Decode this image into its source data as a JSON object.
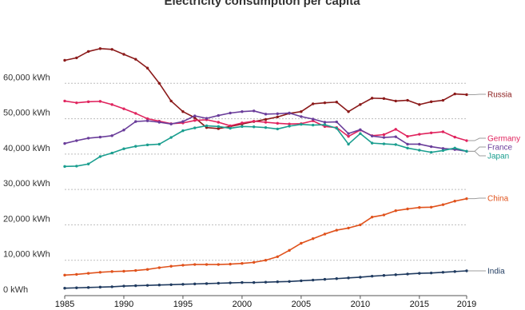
{
  "chart_data": {
    "type": "line",
    "title": "Electricity consumption per capita",
    "xlabel": "",
    "ylabel": "",
    "xlim": [
      1985,
      2019
    ],
    "ylim": [
      0,
      70000
    ],
    "x_ticks": [
      "1985",
      "1990",
      "1995",
      "2000",
      "2005",
      "2010",
      "2015",
      "2019"
    ],
    "y_ticks": [
      "0 kWh",
      "10,000 kWh",
      "20,000 kWh",
      "30,000 kWh",
      "40,000 kWh",
      "50,000 kWh",
      "60,000 kWh"
    ],
    "grid": true,
    "legend": "right-end labels",
    "x": [
      1985,
      1986,
      1987,
      1988,
      1989,
      1990,
      1991,
      1992,
      1993,
      1994,
      1995,
      1996,
      1997,
      1998,
      1999,
      2000,
      2001,
      2002,
      2003,
      2004,
      2005,
      2006,
      2007,
      2008,
      2009,
      2010,
      2011,
      2012,
      2013,
      2014,
      2015,
      2016,
      2017,
      2018,
      2019
    ],
    "series": [
      {
        "name": "Russia",
        "color": "#8b1a1a",
        "values": [
          66500,
          67200,
          69000,
          69800,
          69600,
          68200,
          66800,
          64300,
          60000,
          55000,
          52000,
          50300,
          47500,
          47200,
          47800,
          48500,
          49200,
          49800,
          50500,
          51500,
          52000,
          54200,
          54500,
          54700,
          52000,
          54000,
          55800,
          55700,
          55000,
          55200,
          54000,
          54800,
          55200,
          57000,
          56800
        ]
      },
      {
        "name": "Germany",
        "color": "#e0245e",
        "values": [
          55000,
          54500,
          54800,
          54900,
          54000,
          52800,
          51500,
          50000,
          49300,
          48600,
          48800,
          49500,
          49700,
          49000,
          48000,
          48800,
          49300,
          49000,
          48700,
          48500,
          48600,
          49400,
          47800,
          47500,
          45000,
          46800,
          45200,
          45500,
          47000,
          45000,
          45600,
          46000,
          46300,
          44800,
          43800
        ]
      },
      {
        "name": "France",
        "color": "#6a3d9a",
        "values": [
          43000,
          43800,
          44500,
          44800,
          45200,
          46800,
          49200,
          49400,
          49000,
          48500,
          49200,
          50800,
          50100,
          50900,
          51600,
          52000,
          52200,
          51300,
          51400,
          51600,
          50600,
          49900,
          49000,
          49100,
          45800,
          46900,
          45100,
          44700,
          44900,
          42800,
          42800,
          42100,
          41600,
          41300,
          40800
        ]
      },
      {
        "name": "Japan",
        "color": "#1a9e8f",
        "values": [
          36500,
          36600,
          37200,
          39300,
          40300,
          41500,
          42200,
          42600,
          42800,
          44700,
          46600,
          47400,
          48000,
          47800,
          47300,
          47800,
          47700,
          47500,
          47100,
          47900,
          48400,
          48200,
          48300,
          47300,
          42800,
          45800,
          43100,
          42900,
          42700,
          41700,
          41100,
          40500,
          41000,
          41700,
          40800
        ]
      },
      {
        "name": "China",
        "color": "#e0521c",
        "values": [
          5800,
          6000,
          6300,
          6600,
          6800,
          6900,
          7100,
          7400,
          7900,
          8300,
          8600,
          8800,
          8800,
          8800,
          8900,
          9100,
          9400,
          10000,
          11000,
          12800,
          14800,
          16100,
          17400,
          18500,
          19100,
          20000,
          22200,
          22800,
          24000,
          24500,
          24900,
          25000,
          25700,
          26700,
          27400
        ]
      },
      {
        "name": "India",
        "color": "#1f3a5f",
        "values": [
          2100,
          2200,
          2300,
          2400,
          2500,
          2700,
          2800,
          2900,
          3000,
          3100,
          3200,
          3300,
          3400,
          3500,
          3600,
          3700,
          3700,
          3800,
          3900,
          4000,
          4200,
          4400,
          4600,
          4800,
          5000,
          5200,
          5500,
          5700,
          5900,
          6100,
          6300,
          6400,
          6600,
          6800,
          7000
        ]
      }
    ]
  }
}
